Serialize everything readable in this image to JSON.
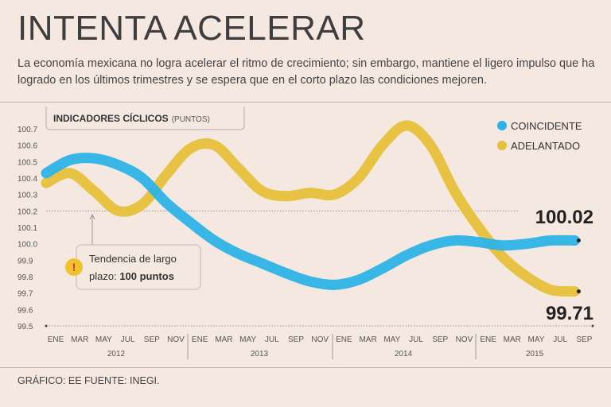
{
  "header": {
    "title": "INTENTA ACELERAR",
    "subtitle": "La economía mexicana no logra acelerar el ritmo de crecimiento; sin embargo, mantiene el ligero impulso que ha logrado en los últimos trimestres y se espera que en el corto plazo las condiciones mejoren."
  },
  "chart_box_title": "INDICADORES CÍCLICOS",
  "chart_box_unit": "(PUNTOS)",
  "annotation": {
    "line1": "Tendencia de largo",
    "line2_prefix": "plazo: ",
    "line2_bold": "100 puntos"
  },
  "footer": "GRÁFICO: EE  FUENTE: INEGI.",
  "colors": {
    "coincidente": "#2db3e6",
    "adelantado": "#e6c03a",
    "background": "#f4e8e1"
  },
  "chart_data": {
    "type": "line",
    "title": "INDICADORES CÍCLICOS",
    "ylim": [
      99.5,
      100.7
    ],
    "yticks": [
      "99.5",
      "99.6",
      "99.7",
      "99.8",
      "99.9",
      "100.0",
      "100.1",
      "100.2",
      "100.3",
      "100.4",
      "100.5",
      "100.6",
      "100.7"
    ],
    "reference_line": 100.2,
    "x_months": [
      "ENE",
      "MAR",
      "MAY",
      "JUL",
      "SEP",
      "NOV",
      "ENE",
      "MAR",
      "MAY",
      "JUL",
      "SEP",
      "NOV",
      "ENE",
      "MAR",
      "MAY",
      "JUL",
      "SEP",
      "NOV",
      "ENE",
      "MAR",
      "MAY",
      "JUL",
      "SEP"
    ],
    "years": [
      "2012",
      "2013",
      "2014",
      "2015"
    ],
    "legend": [
      "COINCIDENTE",
      "ADELANTADO"
    ],
    "series": [
      {
        "name": "COINCIDENTE",
        "color": "#2db3e6",
        "points": [
          [
            0,
            100.43
          ],
          [
            1,
            100.51
          ],
          [
            2,
            100.52
          ],
          [
            3,
            100.48
          ],
          [
            4,
            100.4
          ],
          [
            5,
            100.25
          ],
          [
            6,
            100.13
          ],
          [
            7,
            100.02
          ],
          [
            8,
            99.94
          ],
          [
            9,
            99.88
          ],
          [
            10,
            99.82
          ],
          [
            11,
            99.77
          ],
          [
            12,
            99.75
          ],
          [
            13,
            99.78
          ],
          [
            14,
            99.85
          ],
          [
            15,
            99.93
          ],
          [
            16,
            99.99
          ],
          [
            17,
            100.02
          ],
          [
            18,
            100.01
          ],
          [
            19,
            99.99
          ],
          [
            20,
            100.0
          ],
          [
            21,
            100.02
          ],
          [
            22,
            100.02
          ]
        ],
        "end_label": "100.02"
      },
      {
        "name": "ADELANTADO",
        "color": "#e6c03a",
        "points": [
          [
            0,
            100.37
          ],
          [
            1,
            100.43
          ],
          [
            2,
            100.32
          ],
          [
            3,
            100.2
          ],
          [
            4,
            100.24
          ],
          [
            5,
            100.42
          ],
          [
            6,
            100.58
          ],
          [
            7,
            100.6
          ],
          [
            8,
            100.46
          ],
          [
            9,
            100.32
          ],
          [
            10,
            100.29
          ],
          [
            11,
            100.31
          ],
          [
            12,
            100.3
          ],
          [
            13,
            100.4
          ],
          [
            14,
            100.6
          ],
          [
            15,
            100.72
          ],
          [
            16,
            100.6
          ],
          [
            17,
            100.32
          ],
          [
            18,
            100.1
          ],
          [
            19,
            99.92
          ],
          [
            20,
            99.8
          ],
          [
            21,
            99.72
          ],
          [
            22,
            99.71
          ]
        ],
        "end_label": "99.71"
      }
    ]
  }
}
